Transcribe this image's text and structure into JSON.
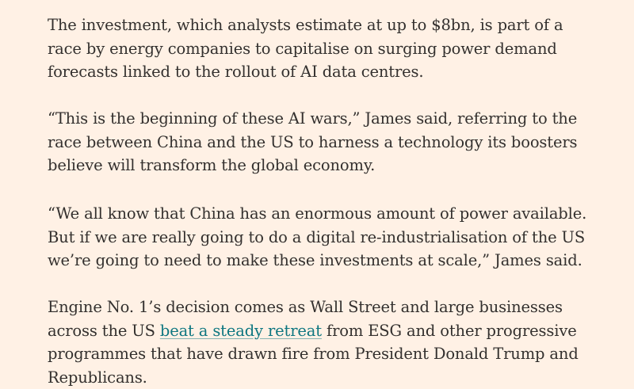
{
  "article": {
    "paragraphs": [
      {
        "text": "The investment, which analysts estimate at up to $8bn, is part of a race by energy companies to capitalise on surging power demand forecasts linked to the rollout of AI data centres."
      },
      {
        "text": "“This is the beginning of these AI wars,” James said, referring to the race between China and the US to harness a technology its boosters believe will transform the global economy."
      },
      {
        "text": "“We all know that China has an enormous amount of power available. But if we are really going to do a digital re-industrialisation of the US we’re going to need to make these investments at scale,” James said."
      },
      {
        "before": "Engine No. 1’s decision comes as Wall Street and large businesses across the US ",
        "link": "beat a steady retreat",
        "after": " from ESG and other progressive programmes that have drawn fire from President Donald Trump and Republicans."
      }
    ]
  },
  "colors": {
    "background": "#fff1e5",
    "text": "#33302e",
    "link": "#0d7680"
  }
}
